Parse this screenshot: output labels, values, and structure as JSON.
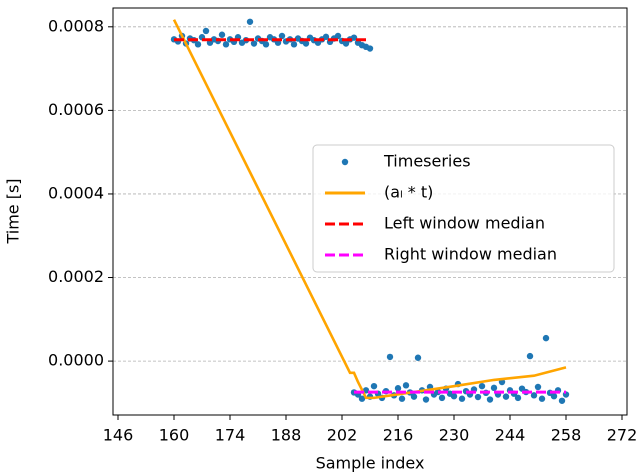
{
  "chart_data": {
    "type": "scatter",
    "xlabel": "Sample index",
    "ylabel": "Time [s]",
    "xlim": [
      144.75,
      273.25
    ],
    "ylim": [
      -0.000129,
      0.000845
    ],
    "xticks": [
      146,
      160,
      174,
      188,
      202,
      216,
      230,
      244,
      258,
      272
    ],
    "yticks": [
      {
        "value": 0,
        "label": "0.0000"
      },
      0.0002,
      0.0004,
      0.0006,
      0.0008
    ],
    "grid": true,
    "legend": "center right",
    "series": [
      {
        "name": "Timeseries",
        "type": "scatter",
        "color": "#1f77b4",
        "x": [
          160,
          161,
          162,
          163,
          164,
          165,
          166,
          167,
          168,
          169,
          170,
          171,
          172,
          173,
          174,
          175,
          176,
          177,
          178,
          179,
          180,
          181,
          182,
          183,
          184,
          185,
          186,
          187,
          188,
          189,
          190,
          191,
          192,
          193,
          194,
          195,
          196,
          197,
          198,
          199,
          200,
          201,
          202,
          203,
          204,
          205,
          206,
          207,
          208,
          209,
          205,
          206,
          207,
          208,
          209,
          210,
          211,
          212,
          213,
          214,
          215,
          216,
          217,
          218,
          219,
          220,
          221,
          222,
          223,
          224,
          225,
          226,
          227,
          228,
          229,
          230,
          231,
          232,
          233,
          234,
          235,
          236,
          237,
          238,
          239,
          240,
          241,
          242,
          243,
          244,
          245,
          246,
          247,
          248,
          249,
          250,
          251,
          252,
          253,
          254,
          255,
          256,
          257,
          258
        ],
        "values": [
          0.00077,
          0.000765,
          0.000778,
          0.00076,
          0.000772,
          0.000768,
          0.000758,
          0.000775,
          0.00079,
          0.000762,
          0.00077,
          0.000766,
          0.000781,
          0.000758,
          0.00077,
          0.000764,
          0.000775,
          0.000762,
          0.000768,
          0.000812,
          0.00076,
          0.000772,
          0.000766,
          0.000758,
          0.000775,
          0.00077,
          0.000762,
          0.000778,
          0.000765,
          0.00077,
          0.000758,
          0.000772,
          0.000766,
          0.00076,
          0.000774,
          0.000768,
          0.000762,
          0.00077,
          0.000776,
          0.000764,
          0.000772,
          0.000778,
          0.000766,
          0.00076,
          0.00077,
          0.000774,
          0.000762,
          0.000756,
          0.000752,
          0.000748,
          -7.5e-05,
          -8e-05,
          -9e-05,
          -7e-05,
          -8.5e-05,
          -6e-05,
          -7.8e-05,
          -8.8e-05,
          -7.2e-05,
          1e-05,
          -8.2e-05,
          -6.5e-05,
          -9e-05,
          -5.8e-05,
          -7.5e-05,
          -8.5e-05,
          8e-06,
          -7e-05,
          -9.2e-05,
          -6.2e-05,
          -8e-05,
          -7.4e-05,
          -8.8e-05,
          -6.6e-05,
          -7.8e-05,
          -8.4e-05,
          -5.5e-05,
          -9e-05,
          -7.2e-05,
          -8e-05,
          -6.8e-05,
          -8.6e-05,
          -6e-05,
          -7.6e-05,
          -9.2e-05,
          -6.4e-05,
          -8e-05,
          -5e-05,
          -8.5e-05,
          -7e-05,
          -7.8e-05,
          -8.8e-05,
          -6.6e-05,
          -7.4e-05,
          1.2e-05,
          -8.2e-05,
          -6.2e-05,
          -9e-05,
          5.5e-05,
          -7.6e-05,
          -8.4e-05,
          -7e-05,
          -9.5e-05,
          -8e-05
        ]
      },
      {
        "name": "(aₗ * t)",
        "type": "line",
        "color": "#ffa500",
        "x": [
          160,
          204,
          205,
          206,
          208,
          210,
          230,
          240,
          250,
          258
        ],
        "values": [
          0.000817,
          -2.8e-05,
          -2.8e-05,
          -5e-05,
          -8.8e-05,
          -8.8e-05,
          -6e-05,
          -4.5e-05,
          -3.5e-05,
          -1.5e-05
        ]
      },
      {
        "name": "Left window median",
        "type": "line",
        "dash": true,
        "color": "#ff0000",
        "x": [
          160,
          209
        ],
        "values": [
          0.000769,
          0.000769
        ]
      },
      {
        "name": "Right window median",
        "type": "line",
        "dash": true,
        "color": "#ff00ff",
        "x": [
          205,
          258
        ],
        "values": [
          -7.43e-05,
          -7.43e-05
        ]
      }
    ]
  }
}
